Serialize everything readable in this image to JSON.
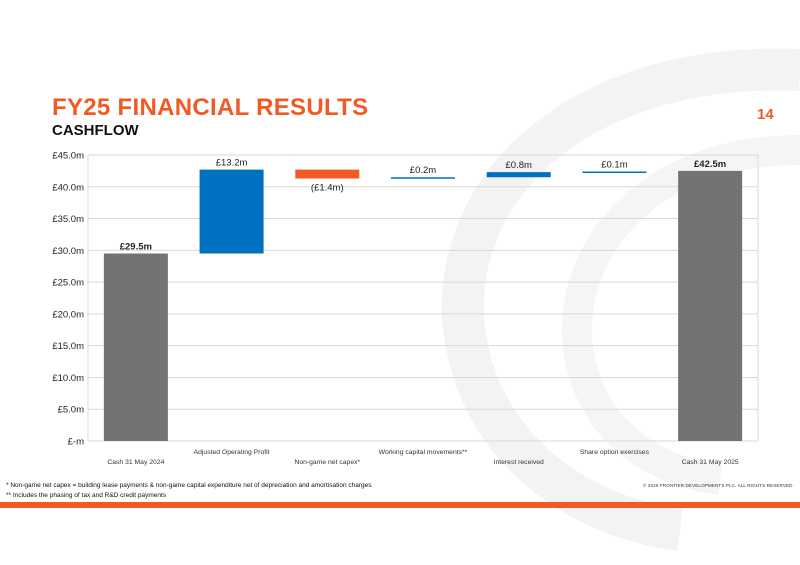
{
  "header": {
    "title": "FY25 FINANCIAL RESULTS",
    "subtitle": "CASHFLOW",
    "page_number": "14"
  },
  "footer": {
    "footnote_1": "* Non-game net capex = building lease payments & non-game capital expenditure net of depreciation and amortisation charges",
    "footnote_2": "** Includes the phasing of tax and R&D credit payments",
    "copyright": "© 2025 FRONTIER DEVELOPMENTS PLC. ALL RIGHTS RESERVED"
  },
  "colors": {
    "accent": "#f15a22",
    "total": "#737373",
    "increase": "#0070c0",
    "decrease": "#f15a22",
    "grid": "#d9d9d9"
  },
  "chart_data": {
    "type": "bar",
    "subtype": "waterfall",
    "title": "",
    "xlabel": "",
    "ylabel": "",
    "ylim": [
      0,
      45
    ],
    "yticks": [
      0,
      5,
      10,
      15,
      20,
      25,
      30,
      35,
      40,
      45
    ],
    "ytick_labels": [
      "£-m",
      "£5.0m",
      "£10.0m",
      "£15.0m",
      "£20.0m",
      "£25.0m",
      "£30.0m",
      "£35.0m",
      "£40.0m",
      "£45.0m"
    ],
    "grid": true,
    "legend": "none",
    "categories": [
      "Cash 31 May 2024",
      "Adjusted Operating Profit",
      "Non-game net capex*",
      "Working capital movements**",
      "Interest received",
      "Share option exercises",
      "Cash 31 May 2025"
    ],
    "values": [
      29.5,
      13.2,
      -1.4,
      0.2,
      0.8,
      0.1,
      42.5
    ],
    "kinds": [
      "total",
      "increase",
      "decrease",
      "increase",
      "increase",
      "increase",
      "total"
    ],
    "data_labels": [
      "£29.5m",
      "£13.2m",
      "(£1.4m)",
      "£0.2m",
      "£0.8m",
      "£0.1m",
      "£42.5m"
    ]
  }
}
